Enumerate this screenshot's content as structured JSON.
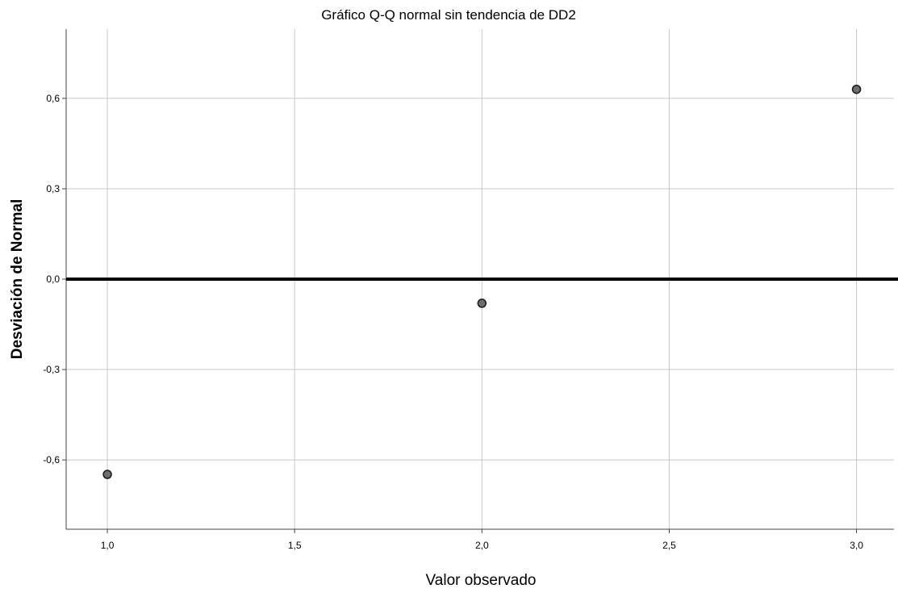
{
  "chart_data": {
    "type": "scatter",
    "title": "Gráfico Q-Q normal sin tendencia de DD2",
    "xlabel": "Valor observado",
    "ylabel": "Desviación de Normal",
    "xlim": [
      0.89,
      3.1
    ],
    "ylim": [
      -0.83,
      0.83
    ],
    "xticks": [
      1.0,
      1.5,
      2.0,
      2.5,
      3.0
    ],
    "xtick_labels": [
      "1,0",
      "1,5",
      "2,0",
      "2,5",
      "3,0"
    ],
    "yticks": [
      -0.6,
      -0.3,
      0.0,
      0.3,
      0.6
    ],
    "ytick_labels": [
      "-0,6",
      "-0,3",
      "0,0",
      "0,3",
      "0,6"
    ],
    "reference_line_y": 0.0,
    "grid": true,
    "points": [
      {
        "x": 1.0,
        "y": -0.648
      },
      {
        "x": 2.0,
        "y": -0.08
      },
      {
        "x": 3.0,
        "y": 0.63
      }
    ],
    "colors": {
      "marker_fill": "#6e6e6e",
      "marker_stroke": "#1a1a1a",
      "grid": "#c8c8c8",
      "axis": "#444444",
      "reference_line": "#000000"
    }
  }
}
